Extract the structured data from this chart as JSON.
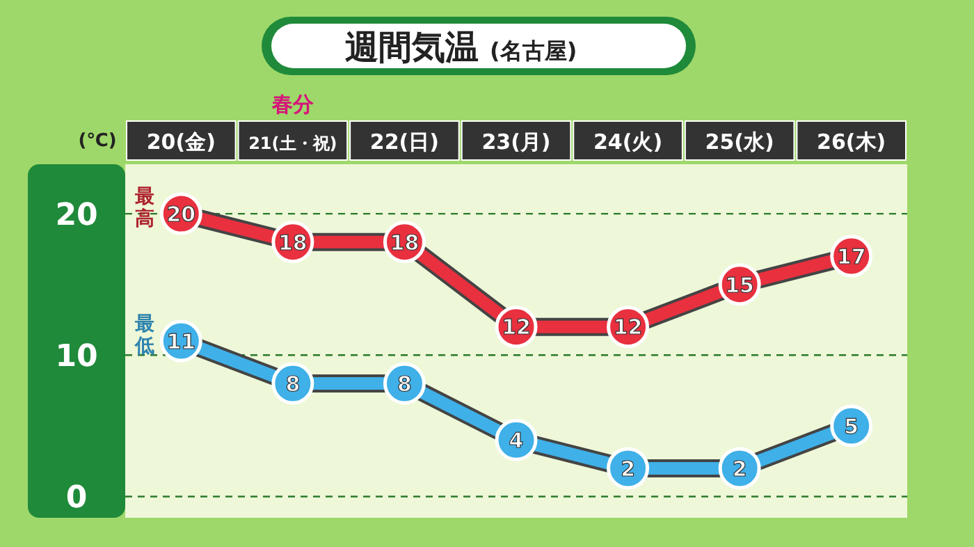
{
  "chart_data": {
    "type": "line",
    "title": "週間気温",
    "subtitle": "(名古屋)",
    "ylabel": "(℃)",
    "categories": [
      "20(金)",
      "21(土・祝)",
      "22(日)",
      "23(月)",
      "24(火)",
      "25(水)",
      "26(木)"
    ],
    "series": [
      {
        "name": "最高",
        "color": "#e8303f",
        "values": [
          20,
          18,
          18,
          12,
          12,
          15,
          17
        ]
      },
      {
        "name": "最低",
        "color": "#3fb0e8",
        "values": [
          11,
          8,
          8,
          4,
          2,
          2,
          5
        ]
      }
    ],
    "annotations": [
      "春分"
    ],
    "ylim": [
      -1.5,
      23.5
    ],
    "yticks": [
      0,
      10,
      20
    ],
    "grid": "y",
    "line_style": "solid",
    "marker": "circle",
    "data_labels": true
  }
}
